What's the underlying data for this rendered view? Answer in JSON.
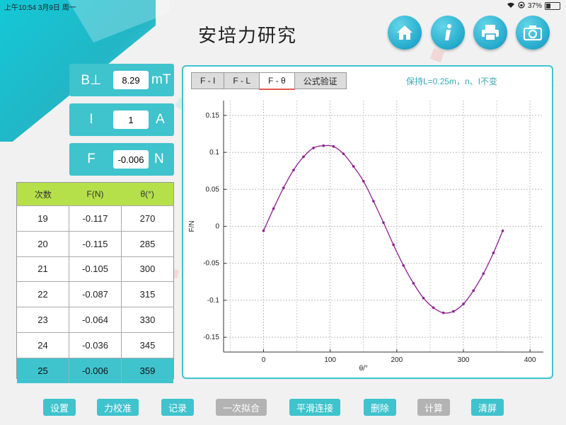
{
  "status_bar": {
    "time": "上午10:54",
    "date": "3月9日 周一",
    "battery": "37%"
  },
  "app": {
    "title": "安培力研究"
  },
  "top_icons": [
    "home-icon",
    "info-icon",
    "print-icon",
    "camera-icon"
  ],
  "params": [
    {
      "label": "B⊥",
      "value": "8.29",
      "unit": "mT"
    },
    {
      "label": "I",
      "value": "1",
      "unit": "A"
    },
    {
      "label": "F",
      "value": "-0.006",
      "unit": "N"
    }
  ],
  "table": {
    "headers": [
      "次数",
      "F(N)",
      "θ(°)"
    ],
    "rows": [
      [
        "19",
        "-0.117",
        "270"
      ],
      [
        "20",
        "-0.115",
        "285"
      ],
      [
        "21",
        "-0.105",
        "300"
      ],
      [
        "22",
        "-0.087",
        "315"
      ],
      [
        "23",
        "-0.064",
        "330"
      ],
      [
        "24",
        "-0.036",
        "345"
      ],
      [
        "25",
        "-0.006",
        "359"
      ]
    ]
  },
  "tabs": [
    "F - I",
    "F - L",
    "F - θ",
    "公式验证"
  ],
  "active_tab": "F - θ",
  "tab_note": "保持L=0.25m，n、I不变",
  "buttons": [
    {
      "label": "设置",
      "enabled": true
    },
    {
      "label": "力校准",
      "enabled": true
    },
    {
      "label": "记录",
      "enabled": true
    },
    {
      "label": "一次拟合",
      "enabled": false
    },
    {
      "label": "平滑连接",
      "enabled": true
    },
    {
      "label": "删除",
      "enabled": true
    },
    {
      "label": "计算",
      "enabled": false
    },
    {
      "label": "清屏",
      "enabled": true
    }
  ],
  "colors": {
    "accent": "#3fc3cd",
    "table_header": "#b6e04a",
    "series": "#8b1f8e"
  },
  "chart_data": {
    "type": "line",
    "xlabel": "θ/°",
    "ylabel": "F/N",
    "xlim": [
      -60,
      420
    ],
    "ylim": [
      -0.17,
      0.17
    ],
    "xticks": [
      0,
      100,
      200,
      300,
      400
    ],
    "yticks": [
      -0.15,
      -0.1,
      -0.05,
      0,
      0.05,
      0.1,
      0.15
    ],
    "ytick_labels": [
      "-0.15",
      "-0.1",
      "-0.05",
      "0",
      "0.05",
      "0.1",
      "0.15"
    ],
    "grid": true,
    "series": [
      {
        "x": [
          0,
          15,
          30,
          45,
          60,
          75,
          90,
          105,
          120,
          135,
          150,
          165,
          180,
          195,
          210,
          225,
          240,
          255,
          270,
          285,
          300,
          315,
          330,
          345,
          359
        ],
        "y": [
          -0.006,
          0.024,
          0.052,
          0.076,
          0.094,
          0.106,
          0.109,
          0.108,
          0.098,
          0.081,
          0.061,
          0.034,
          0.005,
          -0.025,
          -0.053,
          -0.077,
          -0.097,
          -0.11,
          -0.117,
          -0.115,
          -0.105,
          -0.087,
          -0.064,
          -0.036,
          -0.006
        ]
      }
    ]
  }
}
